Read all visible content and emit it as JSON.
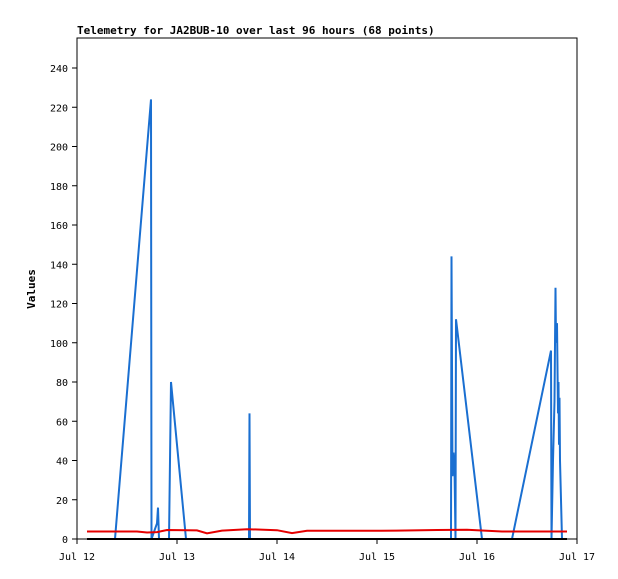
{
  "chart_data": {
    "type": "line",
    "title": "Telemetry for JA2BUB-10 over last 96 hours (68 points)",
    "xlabel": "",
    "ylabel": "Values",
    "x_ticks": [
      "Jul 12",
      "Jul 13",
      "Jul 14",
      "Jul 15",
      "Jul 16",
      "Jul 17"
    ],
    "x_range": [
      0,
      5
    ],
    "x_unit": "days since Jul 12 00:00",
    "y_ticks": [
      0,
      20,
      40,
      60,
      80,
      100,
      120,
      140,
      160,
      180,
      200,
      220,
      240
    ],
    "ylim": [
      0,
      255
    ],
    "grid": false,
    "series": [
      {
        "color": "#1a6fd1",
        "points": [
          [
            0.38,
            0
          ],
          [
            0.74,
            224
          ],
          [
            0.745,
            0
          ],
          [
            0.8,
            8
          ],
          [
            0.81,
            16
          ],
          [
            0.82,
            0
          ],
          [
            0.92,
            0
          ],
          [
            0.94,
            80
          ],
          [
            1.09,
            0
          ],
          [
            1.72,
            0
          ],
          [
            1.725,
            64
          ],
          [
            1.73,
            0
          ],
          [
            3.74,
            0
          ],
          [
            3.745,
            144
          ],
          [
            3.755,
            32
          ],
          [
            3.765,
            44
          ],
          [
            3.775,
            36
          ],
          [
            3.785,
            0
          ],
          [
            3.79,
            112
          ],
          [
            4.05,
            0
          ],
          [
            4.35,
            0
          ],
          [
            4.74,
            96
          ],
          [
            4.745,
            0
          ],
          [
            4.76,
            40
          ],
          [
            4.775,
            70
          ],
          [
            4.785,
            128
          ],
          [
            4.79,
            100
          ],
          [
            4.8,
            110
          ],
          [
            4.81,
            64
          ],
          [
            4.815,
            80
          ],
          [
            4.82,
            48
          ],
          [
            4.825,
            72
          ],
          [
            4.83,
            40
          ],
          [
            4.85,
            0
          ],
          [
            4.86,
            0
          ]
        ]
      },
      {
        "color": "#e60000",
        "points": [
          [
            0.1,
            3.8
          ],
          [
            0.6,
            3.8
          ],
          [
            0.7,
            3.3
          ],
          [
            0.8,
            3.5
          ],
          [
            0.9,
            4.6
          ],
          [
            1.2,
            4.4
          ],
          [
            1.3,
            2.9
          ],
          [
            1.45,
            4.3
          ],
          [
            1.7,
            5.0
          ],
          [
            2.0,
            4.5
          ],
          [
            2.15,
            3.0
          ],
          [
            2.3,
            4.2
          ],
          [
            3.0,
            4.2
          ],
          [
            3.2,
            4.3
          ],
          [
            3.6,
            4.6
          ],
          [
            3.9,
            4.7
          ],
          [
            4.25,
            3.8
          ],
          [
            4.9,
            3.8
          ]
        ]
      },
      {
        "color": "#000000",
        "points": [
          [
            0.1,
            0
          ],
          [
            4.9,
            0
          ]
        ]
      }
    ]
  }
}
